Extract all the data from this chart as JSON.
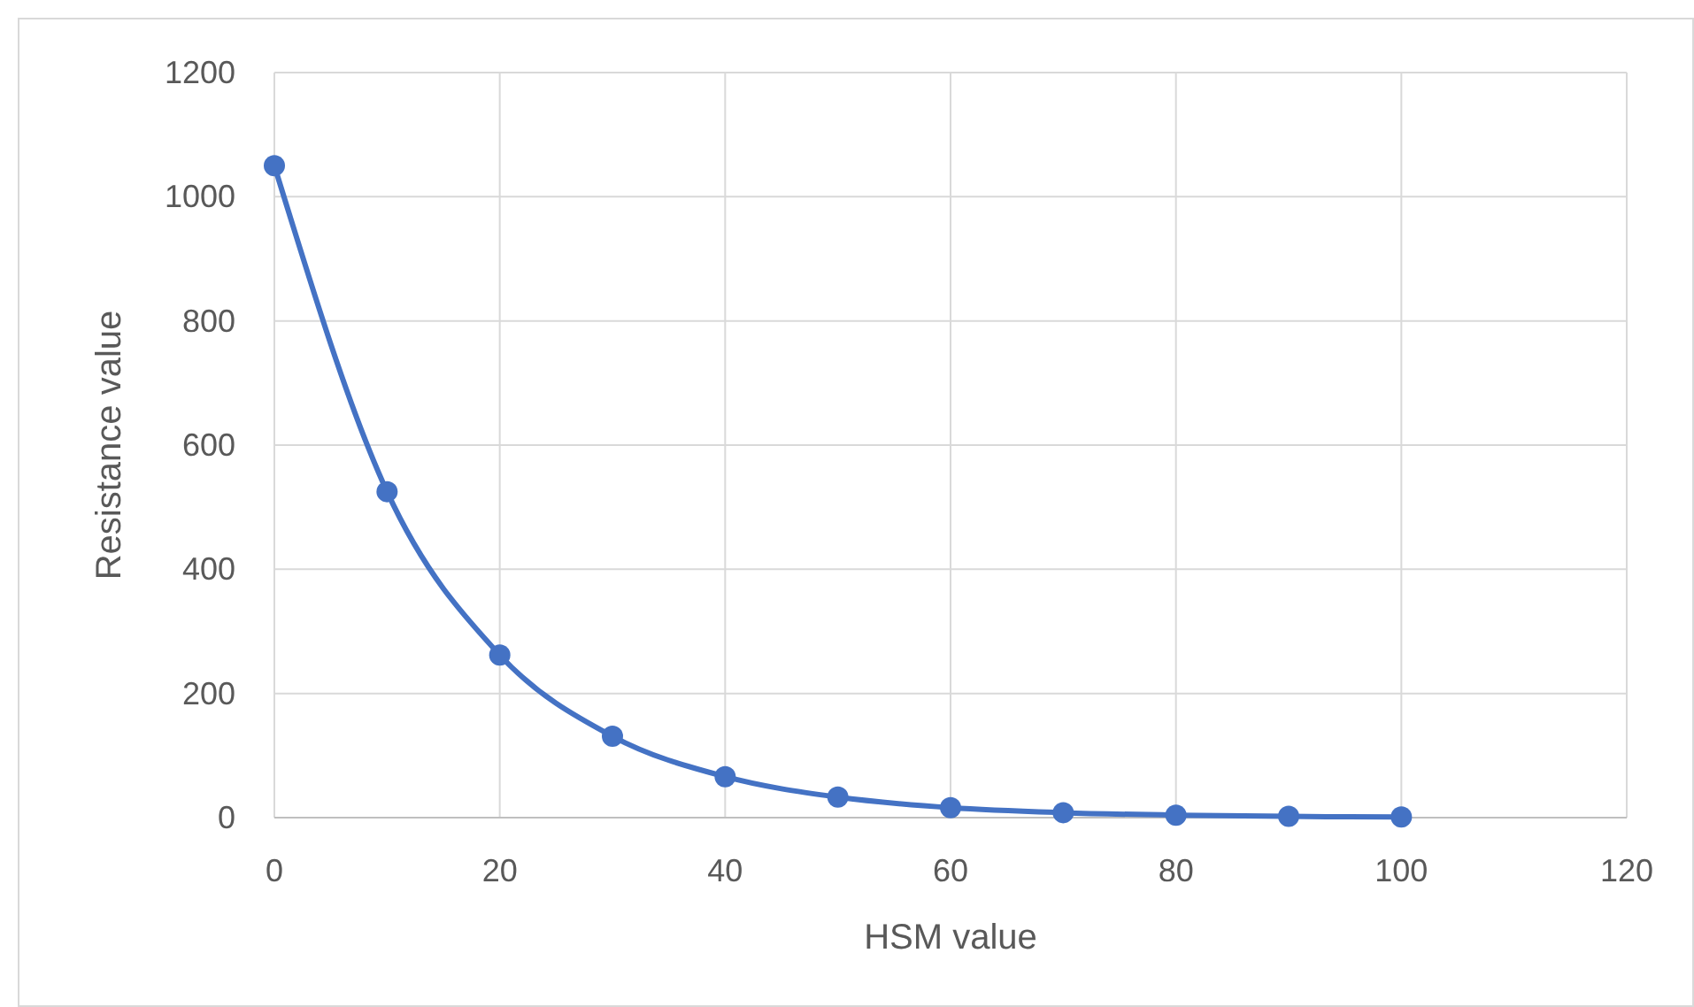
{
  "chart_data": {
    "type": "line",
    "xlabel": "HSM value",
    "ylabel": "Resistance value",
    "x": [
      0,
      10,
      20,
      30,
      40,
      50,
      60,
      70,
      80,
      90,
      100
    ],
    "series": [
      {
        "color": "#4472c4",
        "values": [
          1050,
          525,
          262,
          131,
          66,
          33,
          16,
          8,
          4,
          2,
          1
        ]
      }
    ],
    "xlim": [
      0,
      120
    ],
    "xticks": [
      0,
      20,
      40,
      60,
      80,
      100,
      120
    ],
    "ylim": [
      0,
      1200
    ],
    "yticks": [
      0,
      200,
      400,
      600,
      800,
      1000,
      1200
    ],
    "grid": true,
    "marker": "circle",
    "line_style": "solid"
  }
}
